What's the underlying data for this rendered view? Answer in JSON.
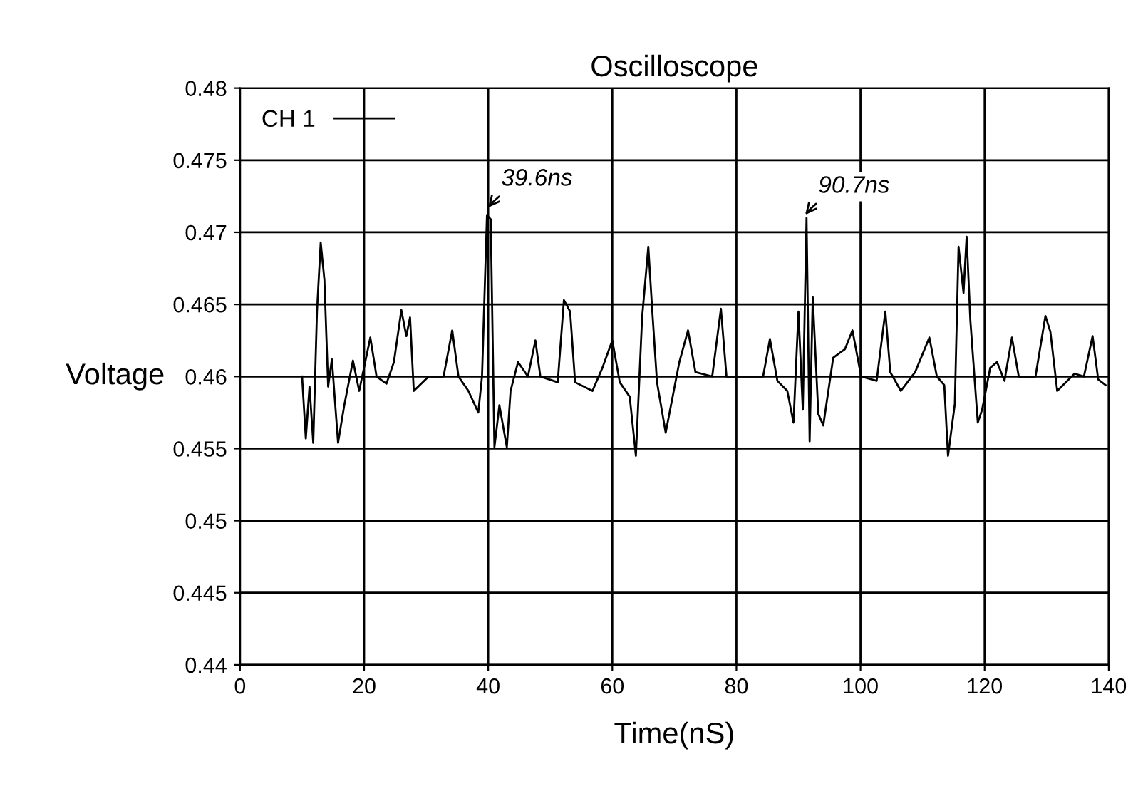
{
  "chart_data": {
    "type": "line",
    "title": "Oscilloscope",
    "xlabel": "Time(nS)",
    "ylabel": "Voltage",
    "xlim": [
      0,
      140
    ],
    "xticks": [
      0,
      20,
      40,
      60,
      80,
      100,
      120,
      140
    ],
    "ylim": [
      0.44,
      0.48
    ],
    "yticks": [
      0.44,
      0.445,
      0.45,
      0.455,
      0.46,
      0.465,
      0.47,
      0.475,
      0.48
    ],
    "grid": true,
    "legend": "top left",
    "marker": "none",
    "line_style": "solid",
    "annotations": [
      {
        "text": "39.6ns",
        "x": 39.6,
        "y": 0.4715
      },
      {
        "text": "90.7ns",
        "x": 90.7,
        "y": 0.471
      }
    ],
    "series": [
      {
        "name": "CH 1",
        "color": "#000000",
        "x": [
          10,
          10.6,
          11.2,
          11.8,
          12.4,
          13,
          13.6,
          14.2,
          14.8,
          15.8,
          16.8,
          18.2,
          19.2,
          21,
          22,
          23.6,
          24.8,
          26,
          26.8,
          27.4,
          28,
          30.4,
          32.8,
          34.2,
          35.2,
          36.8,
          38.4,
          39,
          39.8,
          40.4,
          41,
          41.8,
          43,
          43.6,
          44.8,
          46.4,
          47.6,
          48.4,
          51.2,
          52.2,
          53.2,
          54,
          56.8,
          58.4,
          60,
          61.2,
          62.8,
          63.8,
          64.8,
          65.8,
          66.4,
          67.2,
          68.6,
          70.8,
          72.2,
          73.4,
          76.1,
          77.5,
          78.4,
          82.3,
          84.3,
          85.4,
          86.6,
          88.2,
          89.2,
          90,
          90.7,
          91.3,
          91.8,
          92.3,
          93.2,
          94,
          95.6,
          97.5,
          98.7,
          100.1,
          102.6,
          104,
          104.8,
          106.5,
          108.8,
          111.1,
          112.3,
          113.5,
          114.1,
          115.2,
          115.8,
          116.6,
          117.1,
          117.7,
          118.9,
          119.6,
          120.9,
          122,
          123.2,
          124.4,
          125.5,
          128.2,
          129.8,
          130.6,
          131.7,
          134.5,
          136,
          137.4,
          138.3,
          139.5
        ],
        "values": [
          0.46,
          0.4557,
          0.4593,
          0.4554,
          0.4645,
          0.4693,
          0.4667,
          0.4593,
          0.4612,
          0.4554,
          0.458,
          0.4611,
          0.459,
          0.4627,
          0.46,
          0.4595,
          0.461,
          0.4646,
          0.4628,
          0.4641,
          0.459,
          0.46,
          0.46,
          0.4632,
          0.46,
          0.459,
          0.4575,
          0.46,
          0.4712,
          0.4709,
          0.4551,
          0.458,
          0.4551,
          0.459,
          0.461,
          0.46,
          0.4625,
          0.46,
          0.4596,
          0.4653,
          0.4645,
          0.4596,
          0.459,
          0.4606,
          0.4625,
          0.4596,
          0.4586,
          0.4545,
          0.4641,
          0.469,
          0.4648,
          0.4596,
          0.4561,
          0.461,
          0.4632,
          0.4603,
          0.46,
          0.4647,
          0.46,
          0.46,
          0.46,
          0.4626,
          0.4597,
          0.459,
          0.4568,
          0.4645,
          0.4577,
          0.471,
          0.4555,
          0.4655,
          0.4574,
          0.4566,
          0.4613,
          0.4619,
          0.4632,
          0.46,
          0.4597,
          0.4645,
          0.4603,
          0.459,
          0.4603,
          0.4627,
          0.46,
          0.4594,
          0.4545,
          0.4581,
          0.469,
          0.4658,
          0.4697,
          0.4639,
          0.4568,
          0.4577,
          0.4606,
          0.461,
          0.4597,
          0.4627,
          0.46,
          0.46,
          0.4642,
          0.4631,
          0.459,
          0.4602,
          0.46,
          0.4628,
          0.4598,
          0.4594
        ]
      }
    ]
  }
}
